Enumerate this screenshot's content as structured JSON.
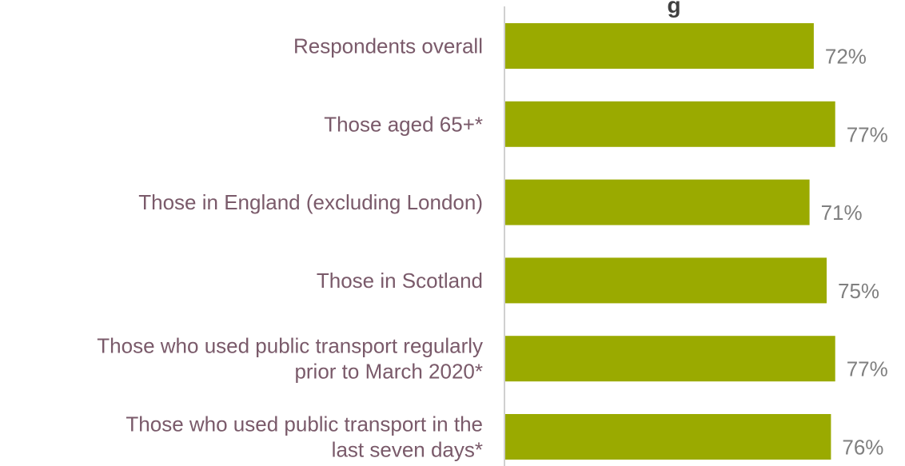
{
  "chart_data": {
    "type": "bar",
    "orientation": "horizontal",
    "title": "g",
    "categories": [
      "Respondents overall",
      "Those aged 65+*",
      "Those in England (excluding London)",
      "Those in Scotland",
      "Those who used public transport regularly prior to March 2020*",
      "Those who used public transport in the last seven days*"
    ],
    "category_lines": [
      [
        "Respondents overall"
      ],
      [
        "Those aged 65+*"
      ],
      [
        "Those in England (excluding London)"
      ],
      [
        "Those in Scotland"
      ],
      [
        "Those who used public transport regularly",
        "prior to March 2020*"
      ],
      [
        "Those who used public transport in the",
        "last seven days*"
      ]
    ],
    "values": [
      72,
      77,
      71,
      75,
      77,
      76
    ],
    "value_labels": [
      "72%",
      "77%",
      "71%",
      "75%",
      "77%",
      "76%"
    ],
    "unit": "%",
    "xlim": [
      0,
      100
    ],
    "grid": false,
    "legend": "none",
    "colors": {
      "bar": "#9aaa00",
      "category_text": "#7a5a6a",
      "value_text": "#7f7f7f",
      "axis_line": "#d0d0d0",
      "title_text": "#404040"
    }
  }
}
